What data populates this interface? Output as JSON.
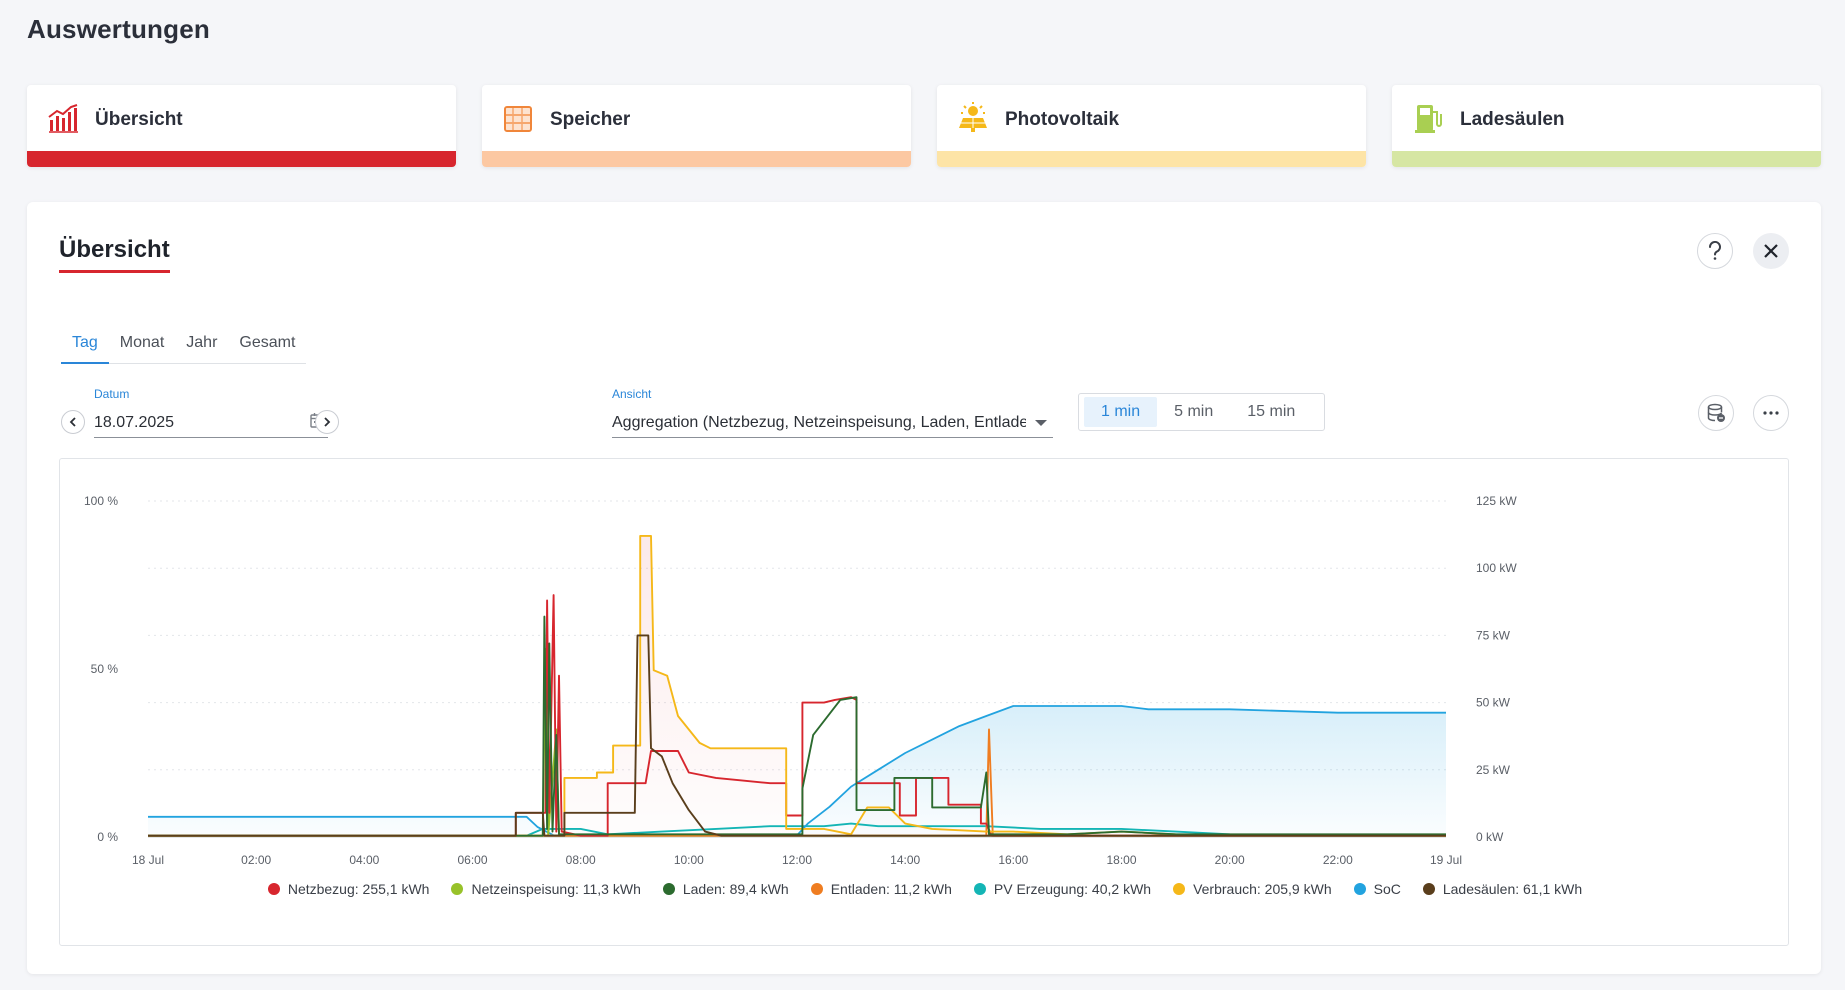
{
  "page": {
    "title": "Auswertungen"
  },
  "cards": [
    {
      "label": "Übersicht",
      "icon": "chart-icon",
      "bar_color": "#d7262e"
    },
    {
      "label": "Speicher",
      "icon": "battery-storage-icon",
      "bar_color": "#fcc8a2"
    },
    {
      "label": "Photovoltaik",
      "icon": "solar-panel-icon",
      "bar_color": "#fde4a6"
    },
    {
      "label": "Ladesäulen",
      "icon": "charging-station-icon",
      "bar_color": "#d6e6a3"
    }
  ],
  "panel": {
    "title": "Übersicht",
    "tabs": [
      {
        "label": "Tag",
        "active": true
      },
      {
        "label": "Monat",
        "active": false
      },
      {
        "label": "Jahr",
        "active": false
      },
      {
        "label": "Gesamt",
        "active": false
      }
    ],
    "date": {
      "label": "Datum",
      "value": "18.07.2025"
    },
    "view": {
      "label": "Ansicht",
      "value": "Aggregation (Netzbezug, Netzeinspeisung, Laden, Entlade..."
    },
    "intervals": [
      {
        "label": "1 min",
        "active": true
      },
      {
        "label": "5 min",
        "active": false
      },
      {
        "label": "15 min",
        "active": false
      }
    ]
  },
  "chart_data": {
    "type": "line",
    "x_ticks": [
      "18 Jul",
      "02:00",
      "04:00",
      "06:00",
      "08:00",
      "10:00",
      "12:00",
      "14:00",
      "16:00",
      "18:00",
      "20:00",
      "22:00",
      "19 Jul"
    ],
    "y_left_ticks": [
      "0 %",
      "50 %",
      "100 %"
    ],
    "y_left_range": [
      0,
      100
    ],
    "y_right_ticks": [
      "0 kW",
      "25 kW",
      "50 kW",
      "75 kW",
      "100 kW",
      "125 kW"
    ],
    "y_right_range": [
      0,
      125
    ],
    "x_range_hours": [
      0,
      24
    ],
    "grid": true,
    "legend_position": "bottom",
    "series": [
      {
        "name": "Netzbezug",
        "legend": "Netzbezug: 255,1 kWh",
        "color": "#d7262e",
        "axis": "kW",
        "points": [
          [
            0,
            0.5
          ],
          [
            6.8,
            0.5
          ],
          [
            6.8,
            9
          ],
          [
            7.35,
            9
          ],
          [
            7.38,
            88
          ],
          [
            7.42,
            9
          ],
          [
            7.5,
            90
          ],
          [
            7.55,
            2
          ],
          [
            7.6,
            60
          ],
          [
            7.65,
            2
          ],
          [
            8,
            0.5
          ],
          [
            8.5,
            0.5
          ],
          [
            8.5,
            20
          ],
          [
            9.2,
            20
          ],
          [
            9.3,
            32
          ],
          [
            9.8,
            32
          ],
          [
            10.0,
            24
          ],
          [
            10.5,
            22
          ],
          [
            11,
            21
          ],
          [
            11.5,
            20
          ],
          [
            11.8,
            20
          ],
          [
            11.8,
            8
          ],
          [
            12.1,
            8
          ],
          [
            12.1,
            50
          ],
          [
            12.5,
            50
          ],
          [
            12.7,
            51
          ],
          [
            13.0,
            52
          ],
          [
            13.1,
            51
          ],
          [
            13.1,
            20
          ],
          [
            13.5,
            20
          ],
          [
            13.9,
            20
          ],
          [
            13.9,
            8
          ],
          [
            14.2,
            8
          ],
          [
            14.2,
            22
          ],
          [
            14.8,
            22
          ],
          [
            14.8,
            12
          ],
          [
            15.4,
            12
          ],
          [
            15.4,
            5
          ],
          [
            15.5,
            5
          ],
          [
            15.6,
            0.5
          ],
          [
            24,
            0.5
          ]
        ]
      },
      {
        "name": "Netzeinspeisung",
        "legend": "Netzeinspeisung: 11,3 kWh",
        "color": "#98c22a",
        "axis": "kW",
        "points": [
          [
            0,
            0.5
          ],
          [
            7.3,
            0.5
          ],
          [
            7.35,
            70
          ],
          [
            7.4,
            0.5
          ],
          [
            7.55,
            40
          ],
          [
            7.6,
            0.5
          ],
          [
            24,
            0.5
          ]
        ]
      },
      {
        "name": "Laden",
        "legend": "Laden: 89,4 kWh",
        "color": "#2c6b2f",
        "axis": "kW",
        "points": [
          [
            0,
            0.5
          ],
          [
            7.3,
            0.5
          ],
          [
            7.33,
            82
          ],
          [
            7.38,
            3
          ],
          [
            7.42,
            72
          ],
          [
            7.48,
            2
          ],
          [
            7.55,
            38
          ],
          [
            7.6,
            1
          ],
          [
            8,
            1
          ],
          [
            12.1,
            1
          ],
          [
            12.1,
            18
          ],
          [
            12.3,
            38
          ],
          [
            12.8,
            51
          ],
          [
            13.1,
            52
          ],
          [
            13.1,
            10
          ],
          [
            13.8,
            10
          ],
          [
            13.8,
            22
          ],
          [
            14.5,
            22
          ],
          [
            14.5,
            11
          ],
          [
            15.4,
            11
          ],
          [
            15.5,
            24
          ],
          [
            15.55,
            1
          ],
          [
            17,
            1
          ],
          [
            18,
            2
          ],
          [
            19,
            1
          ],
          [
            24,
            1
          ]
        ]
      },
      {
        "name": "Entladen",
        "legend": "Entladen: 11,2 kWh",
        "color": "#ef7d21",
        "axis": "kW",
        "points": [
          [
            0,
            0.5
          ],
          [
            15.5,
            0.5
          ],
          [
            15.55,
            40
          ],
          [
            15.62,
            0.5
          ],
          [
            24,
            0.5
          ]
        ]
      },
      {
        "name": "PV Erzeugung",
        "legend": "PV Erzeugung: 40,2 kWh",
        "color": "#14b5b5",
        "axis": "kW",
        "points": [
          [
            0,
            0.5
          ],
          [
            7.0,
            0.5
          ],
          [
            7.3,
            3
          ],
          [
            8.0,
            3
          ],
          [
            8.5,
            1
          ],
          [
            9.5,
            2
          ],
          [
            10.5,
            3
          ],
          [
            11.5,
            4
          ],
          [
            12.5,
            4
          ],
          [
            13.0,
            5
          ],
          [
            13.5,
            4
          ],
          [
            14.5,
            4
          ],
          [
            15.5,
            4
          ],
          [
            16.5,
            3
          ],
          [
            17.5,
            3
          ],
          [
            18.0,
            3
          ],
          [
            19.0,
            2
          ],
          [
            20.0,
            1
          ],
          [
            21.0,
            0.5
          ],
          [
            24,
            0.5
          ]
        ]
      },
      {
        "name": "Verbrauch",
        "legend": "Verbrauch: 205,9 kWh",
        "color": "#f5b819",
        "axis": "kW",
        "points": [
          [
            0,
            0.5
          ],
          [
            7.7,
            0.5
          ],
          [
            7.7,
            22
          ],
          [
            8.3,
            22
          ],
          [
            8.3,
            24
          ],
          [
            8.6,
            24
          ],
          [
            8.6,
            34
          ],
          [
            9.1,
            34
          ],
          [
            9.1,
            112
          ],
          [
            9.3,
            112
          ],
          [
            9.35,
            62
          ],
          [
            9.6,
            60
          ],
          [
            9.8,
            45
          ],
          [
            10.2,
            35
          ],
          [
            10.4,
            33
          ],
          [
            11,
            33
          ],
          [
            11.8,
            33
          ],
          [
            11.8,
            3
          ],
          [
            12.5,
            3
          ],
          [
            13.0,
            1
          ],
          [
            13.3,
            11
          ],
          [
            13.7,
            11
          ],
          [
            14.0,
            5
          ],
          [
            14.5,
            3
          ],
          [
            15.5,
            2
          ],
          [
            16,
            2
          ],
          [
            17,
            1
          ],
          [
            18,
            2
          ],
          [
            19,
            1
          ],
          [
            24,
            0.5
          ]
        ]
      },
      {
        "name": "SoC",
        "legend": "SoC",
        "color": "#22a3df",
        "axis": "%",
        "points": [
          [
            0,
            6
          ],
          [
            7.0,
            6
          ],
          [
            7.2,
            3
          ],
          [
            7.5,
            0.5
          ],
          [
            12.0,
            0.5
          ],
          [
            12.2,
            4
          ],
          [
            12.6,
            9
          ],
          [
            13.0,
            15
          ],
          [
            13.5,
            20
          ],
          [
            14.0,
            25
          ],
          [
            14.5,
            29
          ],
          [
            15.0,
            33
          ],
          [
            15.5,
            36
          ],
          [
            16.0,
            39
          ],
          [
            17.0,
            39
          ],
          [
            18.0,
            39
          ],
          [
            18.5,
            38
          ],
          [
            20.0,
            38
          ],
          [
            22.0,
            37
          ],
          [
            22.5,
            37
          ],
          [
            24,
            37
          ]
        ]
      },
      {
        "name": "Ladesäulen",
        "legend": "Ladesäulen: 61,1 kWh",
        "color": "#5a3e1c",
        "axis": "kW",
        "points": [
          [
            0,
            0.5
          ],
          [
            6.8,
            0.5
          ],
          [
            6.8,
            9
          ],
          [
            7.3,
            9
          ],
          [
            7.33,
            0.5
          ],
          [
            7.7,
            0.5
          ],
          [
            7.7,
            9
          ],
          [
            9.0,
            9
          ],
          [
            9.05,
            75
          ],
          [
            9.25,
            75
          ],
          [
            9.3,
            33
          ],
          [
            9.5,
            30
          ],
          [
            9.7,
            20
          ],
          [
            10.0,
            10
          ],
          [
            10.3,
            2
          ],
          [
            10.6,
            0.5
          ],
          [
            24,
            0.5
          ]
        ]
      }
    ]
  }
}
